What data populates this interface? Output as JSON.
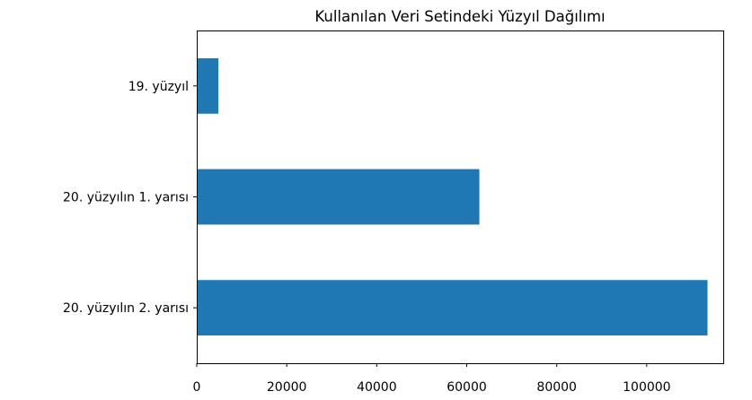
{
  "chart_data": {
    "type": "bar",
    "orientation": "horizontal",
    "title": "Kullanılan Veri Setindeki Yüzyıl Dağılımı",
    "xlabel": "",
    "ylabel": "",
    "categories": [
      "19. yüzyıl",
      "20. yüzyılın 1. yarısı",
      "20. yüzyılın 2. yarısı"
    ],
    "values": [
      4800,
      62800,
      113500
    ],
    "xlim": [
      0,
      117000
    ],
    "xticks": [
      0,
      20000,
      40000,
      60000,
      80000,
      100000
    ],
    "xtick_labels": [
      "0",
      "20000",
      "40000",
      "60000",
      "80000",
      "100000"
    ],
    "bar_color": "#1f77b4",
    "grid": false,
    "legend": "none"
  }
}
